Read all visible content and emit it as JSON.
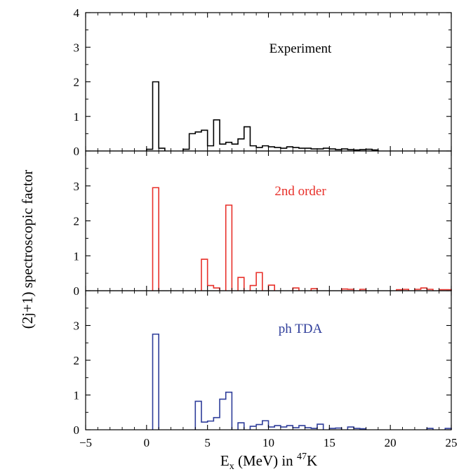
{
  "chart_data": {
    "type": "histogram",
    "layout": "three stacked panels sharing x axis",
    "xlabel": {
      "main": "E",
      "sub": "x",
      "mid": " (MeV) in ",
      "sup": "47",
      "tail": "K"
    },
    "ylabel": "(2j+1) spectroscopic factor",
    "xlim": [
      -5,
      25
    ],
    "xticks": [
      "−5",
      "0",
      "5",
      "10",
      "15",
      "20",
      "25"
    ],
    "bin_width": 0.5,
    "panels": [
      {
        "label": "Experiment",
        "color": "#000000",
        "ylim": [
          0,
          4
        ],
        "yticks": [
          "0",
          "1",
          "2",
          "3",
          "4"
        ],
        "bins": [
          {
            "x": 0.0,
            "y": 0.05
          },
          {
            "x": 0.5,
            "y": 2.0
          },
          {
            "x": 1.0,
            "y": 0.08
          },
          {
            "x": 3.0,
            "y": 0.05
          },
          {
            "x": 3.5,
            "y": 0.5
          },
          {
            "x": 4.0,
            "y": 0.55
          },
          {
            "x": 4.5,
            "y": 0.6
          },
          {
            "x": 5.0,
            "y": 0.15
          },
          {
            "x": 5.5,
            "y": 0.9
          },
          {
            "x": 6.0,
            "y": 0.2
          },
          {
            "x": 6.5,
            "y": 0.25
          },
          {
            "x": 7.0,
            "y": 0.2
          },
          {
            "x": 7.5,
            "y": 0.35
          },
          {
            "x": 8.0,
            "y": 0.7
          },
          {
            "x": 8.5,
            "y": 0.15
          },
          {
            "x": 9.0,
            "y": 0.1
          },
          {
            "x": 9.5,
            "y": 0.15
          },
          {
            "x": 10.0,
            "y": 0.12
          },
          {
            "x": 10.5,
            "y": 0.1
          },
          {
            "x": 11.0,
            "y": 0.08
          },
          {
            "x": 11.5,
            "y": 0.12
          },
          {
            "x": 12.0,
            "y": 0.1
          },
          {
            "x": 12.5,
            "y": 0.08
          },
          {
            "x": 13.0,
            "y": 0.08
          },
          {
            "x": 13.5,
            "y": 0.06
          },
          {
            "x": 14.0,
            "y": 0.06
          },
          {
            "x": 14.5,
            "y": 0.08
          },
          {
            "x": 15.0,
            "y": 0.06
          },
          {
            "x": 15.5,
            "y": 0.04
          },
          {
            "x": 16.0,
            "y": 0.06
          },
          {
            "x": 16.5,
            "y": 0.04
          },
          {
            "x": 17.0,
            "y": 0.03
          },
          {
            "x": 17.5,
            "y": 0.04
          },
          {
            "x": 18.0,
            "y": 0.05
          },
          {
            "x": 18.5,
            "y": 0.03
          }
        ]
      },
      {
        "label": "2nd order",
        "color": "#e8302a",
        "ylim": [
          0,
          4
        ],
        "yticks": [
          "0",
          "1",
          "2",
          "3"
        ],
        "bins": [
          {
            "x": 0.5,
            "y": 2.95
          },
          {
            "x": 4.5,
            "y": 0.9
          },
          {
            "x": 5.0,
            "y": 0.15
          },
          {
            "x": 5.5,
            "y": 0.08
          },
          {
            "x": 6.5,
            "y": 2.45
          },
          {
            "x": 7.5,
            "y": 0.38
          },
          {
            "x": 8.5,
            "y": 0.15
          },
          {
            "x": 9.0,
            "y": 0.52
          },
          {
            "x": 10.0,
            "y": 0.16
          },
          {
            "x": 12.0,
            "y": 0.08
          },
          {
            "x": 13.5,
            "y": 0.06
          },
          {
            "x": 16.0,
            "y": 0.05
          },
          {
            "x": 16.5,
            "y": 0.04
          },
          {
            "x": 17.5,
            "y": 0.04
          },
          {
            "x": 20.5,
            "y": 0.03
          },
          {
            "x": 21.0,
            "y": 0.04
          },
          {
            "x": 22.0,
            "y": 0.04
          },
          {
            "x": 22.5,
            "y": 0.08
          },
          {
            "x": 23.0,
            "y": 0.04
          },
          {
            "x": 24.0,
            "y": 0.03
          },
          {
            "x": 24.5,
            "y": 0.03
          }
        ]
      },
      {
        "label": "ph TDA",
        "color": "#2e3d9a",
        "ylim": [
          0,
          4
        ],
        "yticks": [
          "0",
          "1",
          "2",
          "3"
        ],
        "bins": [
          {
            "x": 0.5,
            "y": 2.75
          },
          {
            "x": 4.0,
            "y": 0.82
          },
          {
            "x": 4.5,
            "y": 0.22
          },
          {
            "x": 5.0,
            "y": 0.25
          },
          {
            "x": 5.5,
            "y": 0.35
          },
          {
            "x": 6.0,
            "y": 0.88
          },
          {
            "x": 6.5,
            "y": 1.08
          },
          {
            "x": 7.5,
            "y": 0.2
          },
          {
            "x": 8.5,
            "y": 0.1
          },
          {
            "x": 9.0,
            "y": 0.15
          },
          {
            "x": 9.5,
            "y": 0.26
          },
          {
            "x": 10.0,
            "y": 0.08
          },
          {
            "x": 10.5,
            "y": 0.12
          },
          {
            "x": 11.0,
            "y": 0.08
          },
          {
            "x": 11.5,
            "y": 0.12
          },
          {
            "x": 12.0,
            "y": 0.06
          },
          {
            "x": 12.5,
            "y": 0.12
          },
          {
            "x": 13.0,
            "y": 0.06
          },
          {
            "x": 13.5,
            "y": 0.04
          },
          {
            "x": 14.0,
            "y": 0.16
          },
          {
            "x": 15.0,
            "y": 0.04
          },
          {
            "x": 15.5,
            "y": 0.05
          },
          {
            "x": 16.5,
            "y": 0.08
          },
          {
            "x": 17.0,
            "y": 0.04
          },
          {
            "x": 17.5,
            "y": 0.03
          },
          {
            "x": 23.0,
            "y": 0.04
          },
          {
            "x": 24.5,
            "y": 0.04
          }
        ]
      }
    ]
  }
}
